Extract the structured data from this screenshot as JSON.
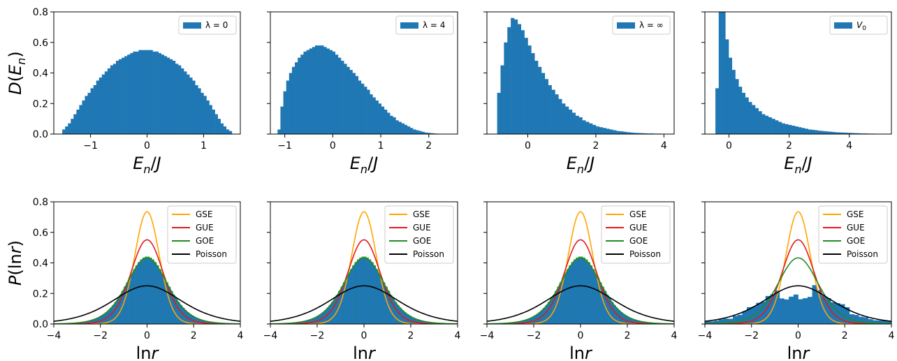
{
  "chart_data": [
    {
      "type": "bar",
      "panel": "top-1",
      "legend": [
        "λ = 0"
      ],
      "xlabel": "E_n/J",
      "ylabel": "D(E_n)",
      "xlim": [
        -1.65,
        1.65
      ],
      "ylim": [
        0,
        0.8
      ],
      "xticks": [
        -1,
        0,
        1
      ],
      "yticks": [
        0.0,
        0.2,
        0.4,
        0.6,
        0.8
      ],
      "hist": {
        "start": -1.5,
        "width": 0.05,
        "values": [
          0.03,
          0.05,
          0.07,
          0.1,
          0.13,
          0.16,
          0.19,
          0.22,
          0.25,
          0.27,
          0.3,
          0.32,
          0.35,
          0.37,
          0.39,
          0.41,
          0.43,
          0.45,
          0.46,
          0.48,
          0.49,
          0.5,
          0.51,
          0.52,
          0.53,
          0.54,
          0.54,
          0.55,
          0.55,
          0.55,
          0.55,
          0.55,
          0.54,
          0.54,
          0.53,
          0.52,
          0.51,
          0.5,
          0.49,
          0.48,
          0.46,
          0.45,
          0.43,
          0.41,
          0.39,
          0.37,
          0.35,
          0.32,
          0.3,
          0.27,
          0.25,
          0.22,
          0.19,
          0.16,
          0.13,
          0.1,
          0.07,
          0.05,
          0.03,
          0.02
        ]
      }
    },
    {
      "type": "bar",
      "panel": "top-2",
      "legend": [
        "λ = 4"
      ],
      "xlabel": "E_n/J",
      "xlim": [
        -1.3,
        2.6
      ],
      "ylim": [
        0,
        0.8
      ],
      "xticks": [
        -1,
        0,
        1,
        2
      ],
      "hist": {
        "start": -1.15,
        "width": 0.06,
        "values": [
          0.03,
          0.18,
          0.28,
          0.35,
          0.4,
          0.44,
          0.47,
          0.5,
          0.52,
          0.54,
          0.55,
          0.56,
          0.57,
          0.58,
          0.58,
          0.58,
          0.57,
          0.56,
          0.55,
          0.54,
          0.52,
          0.5,
          0.48,
          0.46,
          0.44,
          0.42,
          0.4,
          0.38,
          0.35,
          0.33,
          0.31,
          0.29,
          0.26,
          0.24,
          0.22,
          0.2,
          0.18,
          0.16,
          0.14,
          0.12,
          0.11,
          0.09,
          0.08,
          0.07,
          0.06,
          0.05,
          0.04,
          0.03,
          0.025,
          0.02,
          0.015,
          0.01,
          0.008,
          0.006,
          0.004,
          0.003
        ]
      }
    },
    {
      "type": "bar",
      "panel": "top-3",
      "legend": [
        "λ = ∞"
      ],
      "xlabel": "E_n/J",
      "xlim": [
        -1.2,
        4.3
      ],
      "ylim": [
        0,
        0.8
      ],
      "xticks": [
        0,
        2,
        4
      ],
      "hist": {
        "start": -0.9,
        "width": 0.1,
        "values": [
          0.27,
          0.45,
          0.6,
          0.7,
          0.76,
          0.75,
          0.72,
          0.68,
          0.63,
          0.58,
          0.53,
          0.48,
          0.44,
          0.4,
          0.36,
          0.32,
          0.29,
          0.26,
          0.23,
          0.2,
          0.18,
          0.16,
          0.14,
          0.12,
          0.11,
          0.09,
          0.08,
          0.07,
          0.06,
          0.05,
          0.045,
          0.04,
          0.035,
          0.03,
          0.025,
          0.02,
          0.018,
          0.015,
          0.012,
          0.01,
          0.008,
          0.007,
          0.006,
          0.005,
          0.004,
          0.004,
          0.003,
          0.003,
          0.002,
          0.002
        ]
      }
    },
    {
      "type": "bar",
      "panel": "top-4",
      "legend": [
        "V_0"
      ],
      "xlabel": "E_n/J",
      "xlim": [
        -0.8,
        5.4
      ],
      "ylim": [
        0,
        0.8
      ],
      "xticks": [
        0,
        2,
        4
      ],
      "hist": {
        "start": -0.45,
        "width": 0.11,
        "values": [
          0.3,
          1.1,
          0.8,
          0.62,
          0.5,
          0.42,
          0.36,
          0.31,
          0.27,
          0.24,
          0.21,
          0.19,
          0.17,
          0.15,
          0.13,
          0.12,
          0.11,
          0.1,
          0.09,
          0.08,
          0.07,
          0.065,
          0.06,
          0.055,
          0.05,
          0.045,
          0.04,
          0.035,
          0.03,
          0.028,
          0.025,
          0.022,
          0.02,
          0.018,
          0.016,
          0.014,
          0.012,
          0.011,
          0.01,
          0.009,
          0.008,
          0.007,
          0.006,
          0.005,
          0.004,
          0.004,
          0.003,
          0.003,
          0.002,
          0.002
        ]
      }
    },
    {
      "type": "bar",
      "panel": "bottom-1",
      "xlabel": "ln r",
      "ylabel": "P(ln r)",
      "xlim": [
        -4,
        4
      ],
      "ylim": [
        0,
        0.8
      ],
      "xticks": [
        -4,
        -2,
        0,
        2,
        4
      ],
      "yticks": [
        0.0,
        0.2,
        0.4,
        0.6,
        0.8
      ],
      "legend": [
        "GSE",
        "GUE",
        "GOE",
        "Poisson"
      ],
      "hist": {
        "start": -4,
        "width": 0.1,
        "model": "goe"
      }
    },
    {
      "type": "bar",
      "panel": "bottom-2",
      "xlabel": "ln r",
      "xlim": [
        -4,
        4
      ],
      "ylim": [
        0,
        0.8
      ],
      "xticks": [
        -4,
        -2,
        0,
        2,
        4
      ],
      "legend": [
        "GSE",
        "GUE",
        "GOE",
        "Poisson"
      ],
      "hist": {
        "start": -4,
        "width": 0.1,
        "model": "goe"
      }
    },
    {
      "type": "bar",
      "panel": "bottom-3",
      "xlabel": "ln r",
      "xlim": [
        -4,
        4
      ],
      "ylim": [
        0,
        0.8
      ],
      "xticks": [
        -4,
        -2,
        0,
        2,
        4
      ],
      "legend": [
        "GSE",
        "GUE",
        "GOE",
        "Poisson"
      ],
      "hist": {
        "start": -4,
        "width": 0.1,
        "model": "goe"
      }
    },
    {
      "type": "bar",
      "panel": "bottom-4",
      "xlabel": "ln r",
      "xlim": [
        -4,
        4
      ],
      "ylim": [
        0,
        0.8
      ],
      "xticks": [
        -4,
        -2,
        0,
        2,
        4
      ],
      "legend": [
        "GSE",
        "GUE",
        "GOE",
        "Poisson"
      ],
      "hist": {
        "start": -4,
        "width": 0.2,
        "model": "poisson"
      }
    }
  ],
  "colors": {
    "hist": "#1f77b4",
    "goe_edge": "#2ca02c",
    "gse": "#ffa500",
    "gue": "#e41a1c",
    "goe": "#228b22",
    "poisson": "#000000"
  }
}
